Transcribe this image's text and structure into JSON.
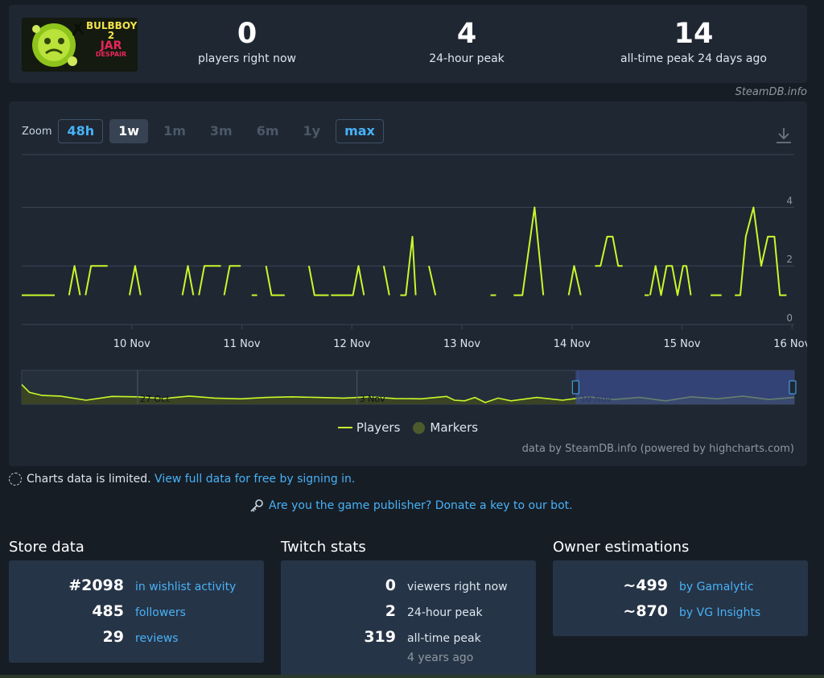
{
  "header": {
    "game_logo": {
      "line1": "BULBBOY",
      "line2": "2",
      "line3": "JAR",
      "line4": "DESPAIR"
    },
    "stats": [
      {
        "value": "0",
        "label": "players right now"
      },
      {
        "value": "4",
        "label": "24-hour peak"
      },
      {
        "value": "14",
        "label": "all-time peak 24 days ago"
      }
    ],
    "credit": "SteamDB.info"
  },
  "chart": {
    "zoom_label": "Zoom",
    "zoom_buttons": [
      {
        "label": "48h",
        "state": "enabled"
      },
      {
        "label": "1w",
        "state": "selected"
      },
      {
        "label": "1m",
        "state": "disabled"
      },
      {
        "label": "3m",
        "state": "disabled"
      },
      {
        "label": "6m",
        "state": "disabled"
      },
      {
        "label": "1y",
        "state": "disabled"
      },
      {
        "label": "max",
        "state": "enabled"
      }
    ],
    "download_icon": "download-icon",
    "legend": [
      {
        "name": "Players",
        "color": "#c7f92b"
      },
      {
        "name": "Markers",
        "color": "#4d5a2c"
      }
    ],
    "credit": "data by SteamDB.info (powered by highcharts.com)",
    "colors": {
      "line": "#c7f92b",
      "grid": "#394555",
      "navigator_mask": "#3b4c8f"
    }
  },
  "chart_data": {
    "type": "line",
    "series": [
      {
        "name": "Players",
        "segments": [
          [
            [
              9.0,
              1
            ],
            [
              9.3,
              1
            ]
          ],
          [
            [
              9.43,
              1
            ],
            [
              9.48,
              2
            ],
            [
              9.53,
              1
            ]
          ],
          [
            [
              9.58,
              1
            ],
            [
              9.63,
              2
            ],
            [
              9.78,
              2
            ]
          ],
          [
            [
              9.98,
              1
            ],
            [
              10.03,
              2
            ],
            [
              10.08,
              1
            ]
          ],
          [
            [
              10.46,
              1
            ],
            [
              10.51,
              2
            ],
            [
              10.56,
              1
            ]
          ],
          [
            [
              10.61,
              1
            ],
            [
              10.66,
              2
            ],
            [
              10.81,
              2
            ]
          ],
          [
            [
              10.84,
              1
            ],
            [
              10.89,
              2
            ],
            [
              10.99,
              2
            ]
          ],
          [
            [
              11.09,
              1
            ],
            [
              11.14,
              1
            ]
          ],
          [
            [
              11.22,
              2
            ],
            [
              11.27,
              1
            ],
            [
              11.39,
              1
            ]
          ],
          [
            [
              11.61,
              2
            ],
            [
              11.66,
              1
            ],
            [
              11.79,
              1
            ]
          ],
          [
            [
              11.81,
              1
            ],
            [
              12.01,
              1
            ],
            [
              12.06,
              2
            ],
            [
              12.11,
              1
            ]
          ],
          [
            [
              12.29,
              2
            ],
            [
              12.34,
              1
            ]
          ],
          [
            [
              12.44,
              1
            ],
            [
              12.49,
              1
            ],
            [
              12.55,
              3
            ],
            [
              12.58,
              1
            ]
          ],
          [
            [
              12.7,
              2
            ],
            [
              12.76,
              1
            ]
          ],
          [
            [
              13.26,
              1
            ],
            [
              13.31,
              1
            ]
          ],
          [
            [
              13.47,
              1
            ],
            [
              13.55,
              1
            ],
            [
              13.66,
              4
            ],
            [
              13.74,
              1
            ]
          ],
          [
            [
              13.97,
              1
            ],
            [
              14.02,
              2
            ],
            [
              14.08,
              1
            ]
          ],
          [
            [
              14.21,
              2
            ],
            [
              14.26,
              2
            ],
            [
              14.32,
              3
            ],
            [
              14.37,
              3
            ],
            [
              14.42,
              2
            ],
            [
              14.46,
              2
            ]
          ],
          [
            [
              14.66,
              1
            ],
            [
              14.7,
              1
            ]
          ],
          [
            [
              14.71,
              1
            ],
            [
              14.76,
              2
            ],
            [
              14.81,
              1
            ],
            [
              14.86,
              2
            ],
            [
              14.91,
              2
            ],
            [
              14.96,
              1
            ],
            [
              15.01,
              2
            ],
            [
              15.04,
              2
            ],
            [
              15.08,
              1
            ]
          ],
          [
            [
              15.26,
              1
            ],
            [
              15.36,
              1
            ]
          ],
          [
            [
              15.48,
              1
            ],
            [
              15.53,
              1
            ],
            [
              15.58,
              3
            ],
            [
              15.65,
              4
            ],
            [
              15.72,
              2
            ],
            [
              15.78,
              3
            ],
            [
              15.84,
              3
            ],
            [
              15.89,
              1
            ],
            [
              15.95,
              1
            ]
          ]
        ]
      }
    ],
    "x_axis": {
      "ticks": [
        "10 Nov",
        "11 Nov",
        "12 Nov",
        "13 Nov",
        "14 Nov",
        "15 Nov",
        "16 Nov"
      ]
    },
    "y_axis": {
      "min": 0,
      "max": 4,
      "ticks": [
        0,
        2,
        4
      ]
    },
    "navigator": {
      "ticks": [
        "27 Oct",
        "3 Nov",
        "10 Nov"
      ],
      "overview": [
        [
          0.0,
          0.58
        ],
        [
          0.03,
          0.35
        ],
        [
          0.08,
          0.26
        ],
        [
          0.15,
          0.24
        ],
        [
          0.25,
          0.12
        ],
        [
          0.35,
          0.23
        ],
        [
          0.45,
          0.22
        ],
        [
          0.55,
          0.17
        ],
        [
          0.65,
          0.24
        ],
        [
          0.75,
          0.18
        ],
        [
          0.85,
          0.16
        ],
        [
          0.95,
          0.2
        ],
        [
          1.05,
          0.22
        ],
        [
          1.15,
          0.2
        ],
        [
          1.25,
          0.18
        ],
        [
          1.35,
          0.22
        ],
        [
          1.45,
          0.17
        ],
        [
          1.55,
          0.16
        ],
        [
          1.65,
          0.23
        ],
        [
          1.68,
          0.12
        ],
        [
          1.72,
          0.1
        ],
        [
          1.76,
          0.2
        ],
        [
          1.8,
          0.05
        ],
        [
          1.85,
          0.18
        ],
        [
          1.9,
          0.1
        ],
        [
          2.0,
          0.2
        ],
        [
          2.1,
          0.12
        ],
        [
          2.2,
          0.22
        ],
        [
          2.3,
          0.14
        ],
        [
          2.4,
          0.2
        ],
        [
          2.5,
          0.1
        ],
        [
          2.6,
          0.22
        ],
        [
          2.7,
          0.16
        ],
        [
          2.8,
          0.24
        ],
        [
          2.9,
          0.14
        ],
        [
          3.0,
          0.2
        ]
      ]
    }
  },
  "notices": {
    "limited_text": "Charts data is limited.",
    "limited_link": "View full data for free by signing in.",
    "publisher_link": "Are you the game publisher? Donate a key to our bot."
  },
  "store": {
    "title": "Store data",
    "rows": [
      {
        "value": "#2098",
        "label": "in wishlist activity"
      },
      {
        "value": "485",
        "label": "followers"
      },
      {
        "value": "29",
        "label": "reviews"
      }
    ]
  },
  "twitch": {
    "title": "Twitch stats",
    "rows": [
      {
        "value": "0",
        "label": "viewers right now"
      },
      {
        "value": "2",
        "label": "24-hour peak"
      },
      {
        "value": "319",
        "label": "all-time peak"
      }
    ],
    "ago": "4 years ago"
  },
  "owners": {
    "title": "Owner estimations",
    "rows": [
      {
        "value": "~499",
        "label": "by Gamalytic"
      },
      {
        "value": "~870",
        "label": "by VG Insights"
      }
    ]
  }
}
